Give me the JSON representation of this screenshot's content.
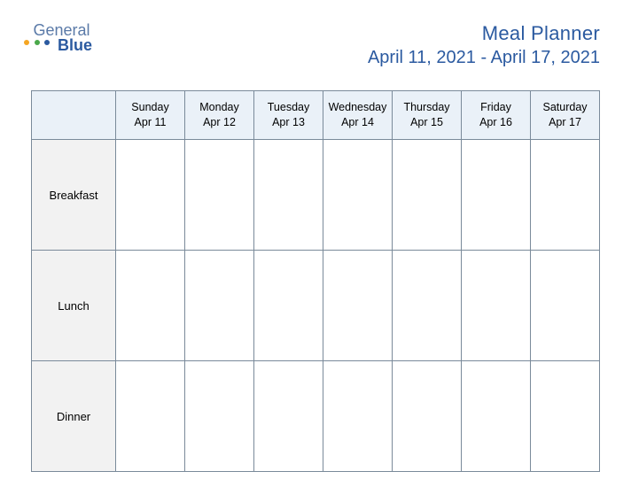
{
  "logo": {
    "text1": "General",
    "text2": "Blue",
    "dot_colors": [
      "#f5a623",
      "#4aa84a",
      "#2b5aa0"
    ]
  },
  "header": {
    "title": "Meal Planner",
    "date_range": "April 11, 2021 - April 17, 2021"
  },
  "table": {
    "type": "table",
    "header_bg": "#eaf1f8",
    "label_bg": "#f2f2f2",
    "border_color": "#7a8a9a",
    "columns": [
      {
        "day": "Sunday",
        "date": "Apr 11"
      },
      {
        "day": "Monday",
        "date": "Apr 12"
      },
      {
        "day": "Tuesday",
        "date": "Apr 13"
      },
      {
        "day": "Wednesday",
        "date": "Apr 14"
      },
      {
        "day": "Thursday",
        "date": "Apr 15"
      },
      {
        "day": "Friday",
        "date": "Apr 16"
      },
      {
        "day": "Saturday",
        "date": "Apr 17"
      }
    ],
    "rows": [
      "Breakfast",
      "Lunch",
      "Dinner"
    ],
    "cells": [
      [
        "",
        "",
        "",
        "",
        "",
        "",
        ""
      ],
      [
        "",
        "",
        "",
        "",
        "",
        "",
        ""
      ],
      [
        "",
        "",
        "",
        "",
        "",
        "",
        ""
      ]
    ]
  },
  "colors": {
    "title_color": "#2b5aa0"
  },
  "fonts": {
    "title_size": 22,
    "subtitle_size": 20,
    "header_size": 12.5,
    "label_size": 13
  }
}
